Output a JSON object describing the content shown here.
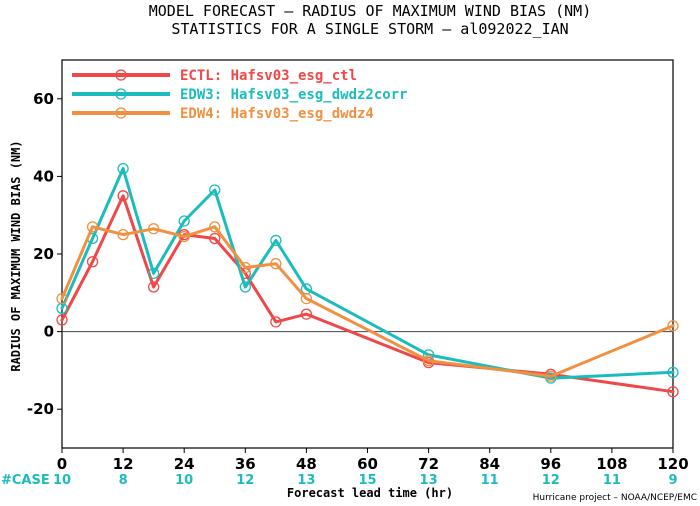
{
  "title_line1": "MODEL FORECAST – RADIUS OF MAXIMUM WIND BIAS (NM)",
  "title_line2": "STATISTICS FOR A SINGLE STORM – al092022_IAN",
  "case_label": "#CASE",
  "credit": "Hurricane project – NOAA/NCEP/EMC",
  "chart_data": {
    "type": "line",
    "title": "MODEL FORECAST – RADIUS OF MAXIMUM WIND BIAS (NM)",
    "subtitle": "STATISTICS FOR A SINGLE STORM – al092022_IAN",
    "xlabel": "Forecast lead time (hr)",
    "ylabel": "RADIUS OF MAXIMUM WIND BIAS (NM)",
    "xlim": [
      0,
      120
    ],
    "ylim": [
      -30,
      70
    ],
    "xticks": [
      0,
      12,
      24,
      36,
      48,
      60,
      72,
      84,
      96,
      108,
      120
    ],
    "yticks": [
      -20,
      0,
      20,
      40,
      60
    ],
    "zero_line": true,
    "legend_position": "top-left",
    "cases": [
      10,
      8,
      10,
      12,
      13,
      15,
      13,
      11,
      12,
      11,
      9
    ],
    "series": [
      {
        "name": "ECTL: Hafsv03_esg_ctl",
        "color": "#f04848",
        "x": [
          0,
          6,
          12,
          18,
          24,
          30,
          36,
          42,
          48,
          72,
          96,
          120
        ],
        "y": [
          3,
          18,
          35,
          11.5,
          25,
          24,
          15,
          2.5,
          4.5,
          -8,
          -11,
          -15.5
        ]
      },
      {
        "name": "EDW3: Hafsv03_esg_dwdz2corr",
        "color": "#1cbcbc",
        "x": [
          0,
          6,
          12,
          18,
          24,
          30,
          36,
          42,
          48,
          72,
          96,
          120
        ],
        "y": [
          6,
          24,
          42,
          15,
          28.5,
          36.5,
          11.5,
          23.5,
          11,
          -6,
          -12,
          -10.5
        ]
      },
      {
        "name": "EDW4: Hafsv03_esg_dwdz4",
        "color": "#f09040",
        "x": [
          0,
          6,
          12,
          18,
          24,
          30,
          36,
          42,
          48,
          72,
          96,
          120
        ],
        "y": [
          8.5,
          27,
          25,
          26.5,
          24.5,
          27,
          16.5,
          17.5,
          8.5,
          -7.5,
          -11.5,
          1.5
        ]
      }
    ]
  }
}
